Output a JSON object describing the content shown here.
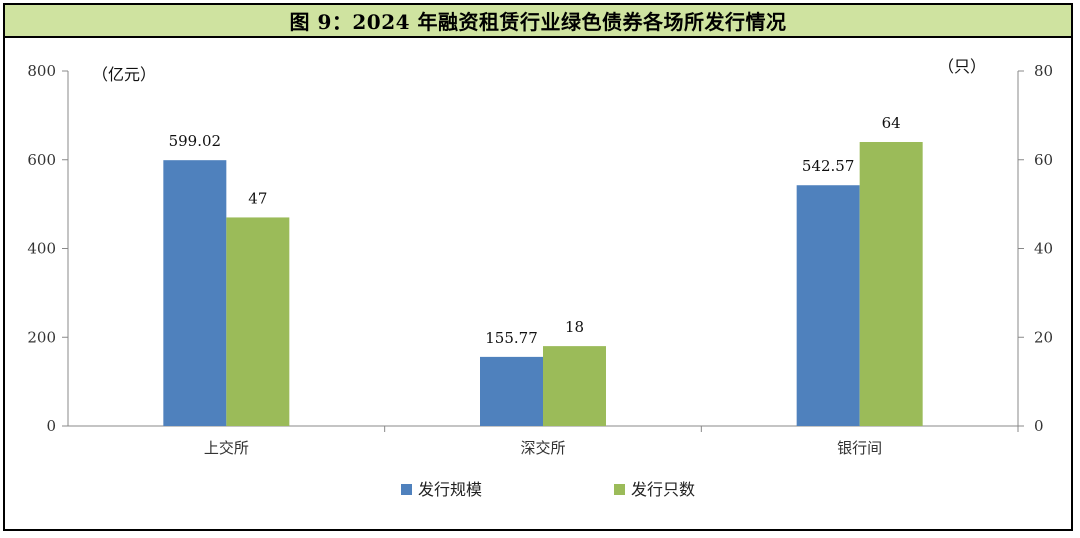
{
  "chart_data": {
    "type": "bar",
    "title": "图 9：2024 年融资租赁行业绿色债券各场所发行情况",
    "categories": [
      "上交所",
      "深交所",
      "银行间"
    ],
    "series": [
      {
        "name": "发行规模",
        "axis": "left",
        "color": "#4f81bd",
        "values": [
          599.02,
          155.77,
          542.57
        ],
        "labels": [
          "599.02",
          "155.77",
          "542.57"
        ]
      },
      {
        "name": "发行只数",
        "axis": "right",
        "color": "#9bbb59",
        "values": [
          47,
          18,
          64
        ],
        "labels": [
          "47",
          "18",
          "64"
        ]
      }
    ],
    "y_left": {
      "unit": "（亿元）",
      "ylim": [
        0,
        800
      ],
      "ticks": [
        "0",
        "200",
        "400",
        "600",
        "800"
      ]
    },
    "y_right": {
      "unit": "（只）",
      "ylim": [
        0,
        80
      ],
      "ticks": [
        "0",
        "20",
        "40",
        "60",
        "80"
      ]
    },
    "grid": false,
    "legend": "bottom"
  }
}
